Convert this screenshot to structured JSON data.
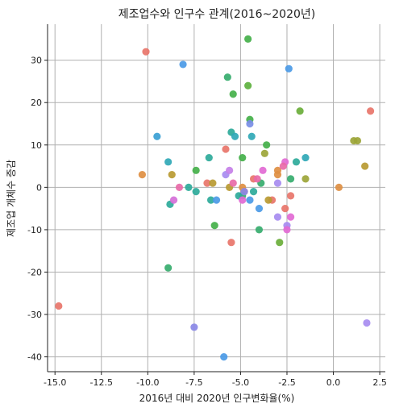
{
  "chart_data": {
    "type": "scatter",
    "title": "제조업수와 인구수 관계(2016~2020년)",
    "xlabel": "2016년 대비 2020년 인구변화율(%)",
    "ylabel": "제조업 개체수 증감",
    "xlim": [
      -15.4,
      2.8
    ],
    "ylim": [
      -43.5,
      38.5
    ],
    "xticks": [
      -15.0,
      -12.5,
      -10.0,
      -7.5,
      -5.0,
      -2.5,
      0.0,
      2.5
    ],
    "xtick_labels": [
      "-15.0",
      "-12.5",
      "-10.0",
      "-7.5",
      "-5.0",
      "-2.5",
      "0.0",
      "2.5"
    ],
    "yticks": [
      -40,
      -30,
      -20,
      -10,
      0,
      10,
      20,
      30
    ],
    "ytick_labels": [
      "-40",
      "-30",
      "-20",
      "-10",
      "0",
      "10",
      "20",
      "30"
    ],
    "grid": true,
    "legend": "none",
    "points": [
      {
        "x": -14.8,
        "y": -28,
        "color": "#e8756a"
      },
      {
        "x": -10.1,
        "y": 32,
        "color": "#e8756a"
      },
      {
        "x": -5.5,
        "y": -13,
        "color": "#e8756a"
      },
      {
        "x": 2.0,
        "y": 18,
        "color": "#e8756a"
      },
      {
        "x": -2.6,
        "y": -5,
        "color": "#e8756a"
      },
      {
        "x": -2.3,
        "y": -2,
        "color": "#e8756a"
      },
      {
        "x": -4.3,
        "y": 2,
        "color": "#e8756a"
      },
      {
        "x": -3.3,
        "y": -3,
        "color": "#e8756a"
      },
      {
        "x": -5.8,
        "y": 9,
        "color": "#e8756a"
      },
      {
        "x": -6.8,
        "y": 1,
        "color": "#e8756a"
      },
      {
        "x": -4.8,
        "y": -1,
        "color": "#e8756a"
      },
      {
        "x": -10.3,
        "y": 3,
        "color": "#de8f43"
      },
      {
        "x": 0.3,
        "y": 0,
        "color": "#de8f43"
      },
      {
        "x": 1.7,
        "y": 5,
        "color": "#b89a32"
      },
      {
        "x": -8.7,
        "y": 3,
        "color": "#b89a32"
      },
      {
        "x": -3.0,
        "y": 3,
        "color": "#de8f43"
      },
      {
        "x": -3.0,
        "y": 4,
        "color": "#de8f43"
      },
      {
        "x": -4.9,
        "y": 0,
        "color": "#de8f43"
      },
      {
        "x": -5.6,
        "y": 0,
        "color": "#b89a32"
      },
      {
        "x": -3.5,
        "y": -3,
        "color": "#b89a32"
      },
      {
        "x": -6.5,
        "y": 1,
        "color": "#b89a32"
      },
      {
        "x": -1.5,
        "y": 2,
        "color": "#9ca538"
      },
      {
        "x": 1.1,
        "y": 11,
        "color": "#9ca538"
      },
      {
        "x": 1.3,
        "y": 11,
        "color": "#9ca538"
      },
      {
        "x": -3.7,
        "y": 8,
        "color": "#9ca538"
      },
      {
        "x": -1.8,
        "y": 18,
        "color": "#6aae3a"
      },
      {
        "x": -2.9,
        "y": -13,
        "color": "#6aae3a"
      },
      {
        "x": -4.6,
        "y": 24,
        "color": "#5db13e"
      },
      {
        "x": -4.6,
        "y": 35,
        "color": "#44b04a"
      },
      {
        "x": -5.4,
        "y": 22,
        "color": "#44b04a"
      },
      {
        "x": -4.5,
        "y": 16,
        "color": "#44b04a"
      },
      {
        "x": -3.6,
        "y": 10,
        "color": "#44b04a"
      },
      {
        "x": -4.9,
        "y": 7,
        "color": "#44b04a"
      },
      {
        "x": -7.4,
        "y": 4,
        "color": "#44b04a"
      },
      {
        "x": -6.4,
        "y": -9,
        "color": "#44b04a"
      },
      {
        "x": -8.9,
        "y": -19,
        "color": "#36ad6e"
      },
      {
        "x": -5.7,
        "y": 26,
        "color": "#36ad6e"
      },
      {
        "x": -4.0,
        "y": -10,
        "color": "#36ad6e"
      },
      {
        "x": -3.9,
        "y": 1,
        "color": "#36ad6e"
      },
      {
        "x": -2.3,
        "y": 2,
        "color": "#36ad6e"
      },
      {
        "x": -4.9,
        "y": -2,
        "color": "#36ad6e"
      },
      {
        "x": -6.7,
        "y": 7,
        "color": "#2eaa9a"
      },
      {
        "x": -6.6,
        "y": -3,
        "color": "#2eaa9a"
      },
      {
        "x": -7.8,
        "y": 0,
        "color": "#2eaa9a"
      },
      {
        "x": -8.8,
        "y": -4,
        "color": "#2eaa9a"
      },
      {
        "x": -7.4,
        "y": -1,
        "color": "#2eaa9a"
      },
      {
        "x": -2.0,
        "y": 6,
        "color": "#2eaa9a"
      },
      {
        "x": -4.3,
        "y": -1,
        "color": "#2eaa9a"
      },
      {
        "x": -5.1,
        "y": -2,
        "color": "#2eaa9a"
      },
      {
        "x": -5.5,
        "y": 13,
        "color": "#2eaa9a"
      },
      {
        "x": -5.3,
        "y": 12,
        "color": "#30a8b6"
      },
      {
        "x": -4.4,
        "y": 12,
        "color": "#30a8b6"
      },
      {
        "x": -1.5,
        "y": 7,
        "color": "#30a8b6"
      },
      {
        "x": -8.9,
        "y": 6,
        "color": "#30a8b6"
      },
      {
        "x": -9.5,
        "y": 12,
        "color": "#3aa0d4"
      },
      {
        "x": -8.1,
        "y": 29,
        "color": "#4b9ae6"
      },
      {
        "x": -2.4,
        "y": 28,
        "color": "#4b9ae6"
      },
      {
        "x": -6.3,
        "y": -3,
        "color": "#4b9ae6"
      },
      {
        "x": -5.9,
        "y": -40,
        "color": "#4b9ae6"
      },
      {
        "x": -4.5,
        "y": -3,
        "color": "#4b9ae6"
      },
      {
        "x": -4.0,
        "y": -5,
        "color": "#4b9ae6"
      },
      {
        "x": -4.5,
        "y": 15,
        "color": "#7a8ee6"
      },
      {
        "x": -7.5,
        "y": -33,
        "color": "#8a88e6"
      },
      {
        "x": -4.8,
        "y": -1,
        "color": "#8a88e6"
      },
      {
        "x": 1.8,
        "y": -32,
        "color": "#a78cf0"
      },
      {
        "x": -5.8,
        "y": 3,
        "color": "#a78cf0"
      },
      {
        "x": -3.0,
        "y": -7,
        "color": "#a78cf0"
      },
      {
        "x": -2.5,
        "y": -9,
        "color": "#a78cf0"
      },
      {
        "x": -3.0,
        "y": 1,
        "color": "#a78cf0"
      },
      {
        "x": -5.6,
        "y": 4,
        "color": "#c680e8"
      },
      {
        "x": -8.6,
        "y": -3,
        "color": "#d56fd8"
      },
      {
        "x": -3.8,
        "y": 4,
        "color": "#e26ad4"
      },
      {
        "x": -2.6,
        "y": 6,
        "color": "#e26ad4"
      },
      {
        "x": -2.3,
        "y": -7,
        "color": "#e26ad4"
      },
      {
        "x": -2.5,
        "y": -10,
        "color": "#e26ad4"
      },
      {
        "x": -4.9,
        "y": -3,
        "color": "#e26ad4"
      },
      {
        "x": -8.3,
        "y": 0,
        "color": "#e86aa8"
      },
      {
        "x": -5.4,
        "y": 1,
        "color": "#e86aa8"
      },
      {
        "x": -4.1,
        "y": 2,
        "color": "#e86aa8"
      },
      {
        "x": -2.7,
        "y": 5,
        "color": "#e86aa8"
      }
    ]
  }
}
